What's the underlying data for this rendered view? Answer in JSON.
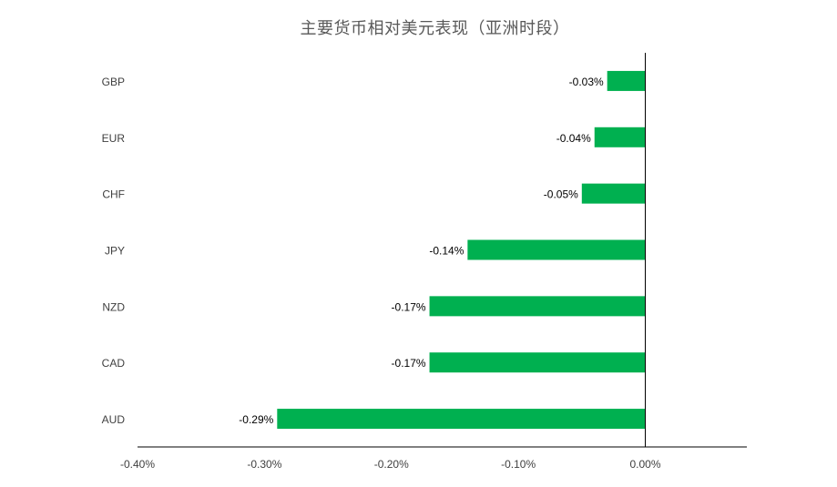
{
  "chart_data": {
    "type": "bar",
    "orientation": "horizontal",
    "title": "主要货币相对美元表现（亚洲时段）",
    "categories": [
      "GBP",
      "EUR",
      "CHF",
      "JPY",
      "NZD",
      "CAD",
      "AUD"
    ],
    "values": [
      -0.03,
      -0.04,
      -0.05,
      -0.14,
      -0.17,
      -0.17,
      -0.29
    ],
    "data_labels": [
      "-0.03%",
      "-0.04%",
      "-0.05%",
      "-0.14%",
      "-0.17%",
      "-0.17%",
      "-0.29%"
    ],
    "x_ticks": [
      -0.4,
      -0.3,
      -0.2,
      -0.1,
      0.0
    ],
    "x_tick_labels": [
      "-0.40%",
      "-0.30%",
      "-0.20%",
      "-0.10%",
      "0.00%"
    ],
    "xlim": [
      -0.4,
      0.08
    ],
    "xlabel": "",
    "ylabel": "",
    "grid": false,
    "legend": "none",
    "bar_color": "#00B050",
    "axis_color": "#000000",
    "text_color": "#404040",
    "title_color": "#595959"
  }
}
